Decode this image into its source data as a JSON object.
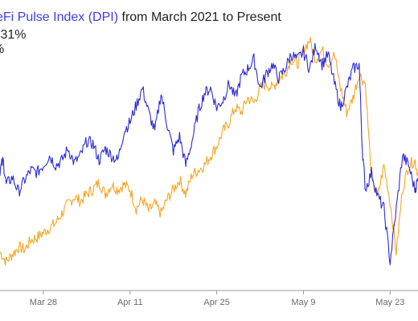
{
  "header": {
    "title_colored": "eFi Pulse Index (DPI)",
    "title_rest": " from March 2021 to Present",
    "line2": ".31%",
    "line3": "%"
  },
  "colors": {
    "series_blue": "#2b2bd6",
    "series_orange": "#f5a623",
    "axis": "#9a9a9a",
    "text": "#1f1f1f"
  },
  "chart_data": {
    "type": "line",
    "title": "eFi Pulse Index (DPI) from March 2021 to Present",
    "xlabel": "",
    "ylabel": "",
    "grid": false,
    "legend": "none",
    "x_tick_labels": [
      "Mar 28",
      "Apr 11",
      "Apr 25",
      "May 9",
      "May 23"
    ],
    "x_tick_days": [
      7,
      21,
      35,
      49,
      63
    ],
    "x_range_days": [
      0,
      67.5
    ],
    "y_range": [
      0,
      100
    ],
    "series": [
      {
        "color": "#2b2bd6",
        "x": [
          0,
          0.5,
          1,
          2,
          3,
          4,
          5,
          6,
          7,
          8,
          9,
          10,
          11,
          12,
          13,
          14,
          15,
          16,
          17,
          18,
          19,
          20,
          21,
          22,
          23,
          24,
          25,
          26,
          27,
          28,
          29,
          30,
          31,
          32,
          33,
          34,
          35,
          36,
          37,
          38,
          39,
          40,
          41,
          42,
          43,
          44,
          45,
          46,
          47,
          48,
          49,
          50,
          51,
          52,
          53,
          54,
          55,
          56,
          57,
          58,
          58.5,
          59,
          60,
          61,
          62,
          63,
          64,
          65,
          66,
          67,
          67.5
        ],
        "y": [
          46,
          50,
          40,
          43,
          37,
          42,
          46,
          45,
          48,
          52,
          48,
          50,
          55,
          49,
          52,
          58,
          57,
          50,
          55,
          52,
          50,
          62,
          66,
          73,
          80,
          70,
          62,
          78,
          65,
          54,
          60,
          48,
          58,
          70,
          78,
          80,
          72,
          75,
          82,
          76,
          85,
          88,
          92,
          80,
          86,
          90,
          84,
          88,
          94,
          92,
          95,
          88,
          98,
          90,
          94,
          82,
          72,
          80,
          88,
          90,
          55,
          38,
          45,
          35,
          30,
          8,
          30,
          52,
          48,
          38,
          42
        ]
      },
      {
        "color": "#f5a623",
        "x": [
          0,
          1,
          2,
          3,
          4,
          5,
          6,
          7,
          8,
          9,
          10,
          11,
          12,
          13,
          14,
          15,
          16,
          17,
          18,
          19,
          20,
          21,
          22,
          23,
          24,
          25,
          26,
          27,
          28,
          29,
          30,
          31,
          32,
          33,
          34,
          35,
          36,
          37,
          38,
          39,
          40,
          41,
          42,
          43,
          44,
          45,
          46,
          47,
          48,
          49,
          50,
          51,
          52,
          53,
          54,
          55,
          56,
          57,
          58,
          59,
          60,
          61,
          62,
          63,
          64,
          65,
          66,
          67,
          67.5
        ],
        "y": [
          12,
          8,
          11,
          14,
          13,
          17,
          18,
          20,
          22,
          24,
          28,
          32,
          35,
          33,
          36,
          38,
          41,
          36,
          40,
          38,
          40,
          38,
          30,
          34,
          29,
          32,
          28,
          34,
          38,
          42,
          36,
          44,
          46,
          48,
          52,
          56,
          62,
          66,
          72,
          70,
          76,
          74,
          80,
          82,
          80,
          84,
          86,
          92,
          90,
          96,
          100,
          92,
          96,
          90,
          94,
          80,
          70,
          76,
          86,
          82,
          42,
          35,
          48,
          33,
          12,
          38,
          48,
          50,
          44
        ]
      }
    ]
  }
}
